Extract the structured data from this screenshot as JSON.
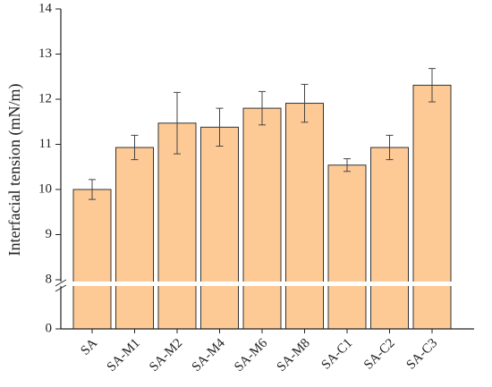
{
  "chart_data": {
    "type": "bar",
    "y_label": "Interfacial tension (mN/m)",
    "categories": [
      "SA",
      "SA-M1",
      "SA-M2",
      "SA-M4",
      "SA-M6",
      "SA-M8",
      "SA-C1",
      "SA-C2",
      "SA-C3"
    ],
    "values": [
      10.0,
      10.93,
      11.47,
      11.38,
      11.8,
      11.91,
      10.54,
      10.93,
      12.31
    ],
    "errors": [
      0.22,
      0.27,
      0.68,
      0.42,
      0.37,
      0.42,
      0.14,
      0.27,
      0.37
    ],
    "color": "#fdca96",
    "ylim": [
      0,
      14
    ],
    "ybreak": 8,
    "yticks": [
      0,
      8,
      9,
      10,
      11,
      12,
      13,
      14
    ]
  }
}
